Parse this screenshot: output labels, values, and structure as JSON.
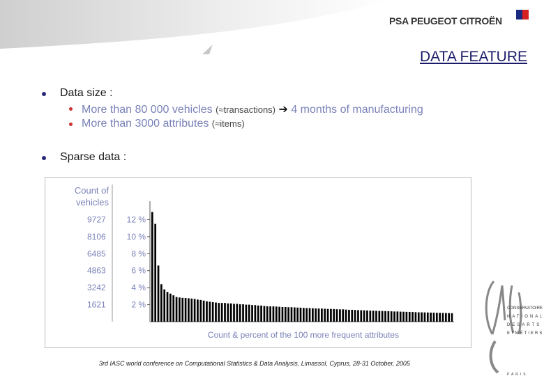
{
  "header": {
    "brand": "PSA PEUGEOT CITROËN",
    "title": "DATA FEATURE"
  },
  "bullets": {
    "data_size_label": "Data size :",
    "item1_main": "More than 80 000 vehicles",
    "item1_small": "(≈transactions)",
    "item1_arrow": "➔",
    "item1_tail": "4 months of manufacturing",
    "item2_main": "More than 3000 attributes",
    "item2_small": "(≈items)",
    "sparse_label": "Sparse data :"
  },
  "chart_data": {
    "type": "bar",
    "ylabel": "Count of vehicles",
    "xlabel": "Count & percent of the 100 more frequent attributes",
    "count_ticks": [
      "9727",
      "8106",
      "6485",
      "4863",
      "3242",
      "1621"
    ],
    "percent_ticks": [
      "12 %",
      "10 %",
      "8 %",
      "6 %",
      "4 %",
      "2 %"
    ],
    "ylim_percent": [
      0,
      14
    ],
    "values_percent": [
      12.9,
      11.5,
      6.6,
      4.4,
      3.8,
      3.5,
      3.3,
      3.1,
      2.9,
      2.85,
      2.8,
      2.78,
      2.75,
      2.72,
      2.68,
      2.6,
      2.55,
      2.48,
      2.4,
      2.35,
      2.3,
      2.25,
      2.2,
      2.2,
      2.2,
      2.15,
      2.15,
      2.1,
      2.1,
      2.05,
      2.05,
      2.0,
      2.0,
      1.95,
      1.95,
      1.9,
      1.9,
      1.85,
      1.82,
      1.8,
      1.8,
      1.78,
      1.75,
      1.72,
      1.72,
      1.7,
      1.7,
      1.68,
      1.66,
      1.65,
      1.62,
      1.6,
      1.6,
      1.58,
      1.56,
      1.55,
      1.55,
      1.52,
      1.5,
      1.5,
      1.48,
      1.46,
      1.45,
      1.45,
      1.42,
      1.4,
      1.4,
      1.38,
      1.36,
      1.35,
      1.34,
      1.32,
      1.3,
      1.3,
      1.28,
      1.27,
      1.26,
      1.25,
      1.24,
      1.22,
      1.2,
      1.2,
      1.18,
      1.17,
      1.16,
      1.15,
      1.14,
      1.12,
      1.1,
      1.1,
      1.09,
      1.08,
      1.07,
      1.06,
      1.05,
      1.04,
      1.03,
      1.02,
      1.01,
      1.0
    ],
    "grid": false
  },
  "cnam": {
    "lines": [
      "CONSERVATOIRE",
      "NATIONAL",
      "DES ARTS",
      "ET MÉTIERS"
    ],
    "bottom": "PARIS"
  },
  "footer": "3rd IASC world conference on Computational Statistics & Data Analysis, Limassol, Cyprus, 28-31 October, 2005"
}
